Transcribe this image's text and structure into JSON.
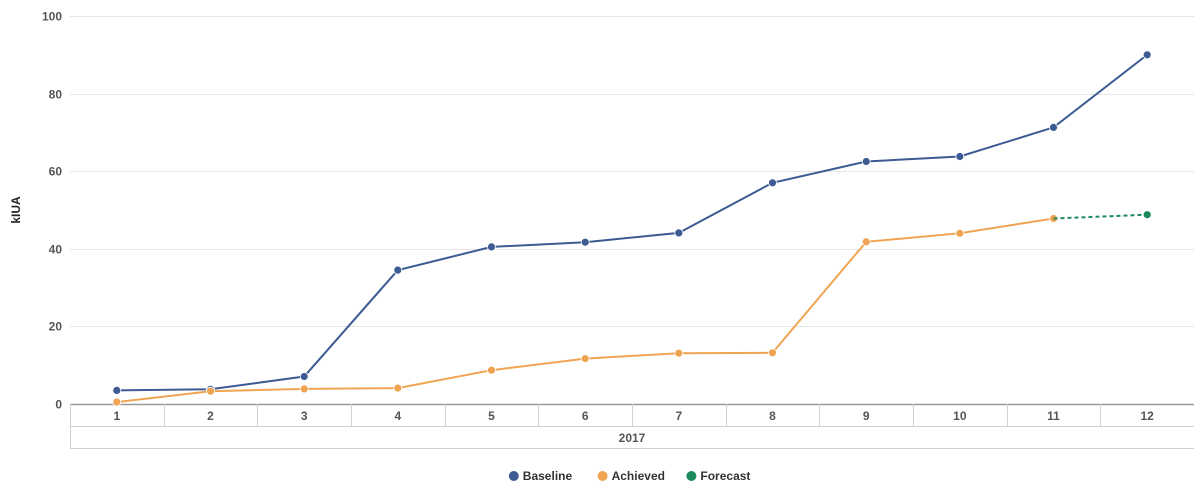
{
  "chart_data": {
    "type": "line",
    "ylabel": "kIUA",
    "ylim": [
      0,
      100
    ],
    "yticks": [
      0,
      20,
      40,
      60,
      80,
      100
    ],
    "categories": [
      "1",
      "2",
      "3",
      "4",
      "5",
      "6",
      "7",
      "8",
      "9",
      "10",
      "11",
      "12"
    ],
    "group_label": "2017",
    "grid": true,
    "legend_position": "bottom-center",
    "series": [
      {
        "name": "Baseline",
        "color": "#3b5b92",
        "values": [
          3.5,
          3.8,
          7.1,
          34.5,
          40.5,
          41.7,
          44.1,
          57.0,
          62.5,
          63.8,
          71.3,
          90.0
        ]
      },
      {
        "name": "Achieved",
        "color": "#f0a451",
        "values": [
          0.5,
          3.3,
          3.9,
          4.1,
          8.7,
          11.7,
          13.1,
          13.2,
          41.8,
          44.0,
          47.8,
          null
        ]
      },
      {
        "name": "Forecast",
        "color": "#1b8a5a",
        "values": [
          null,
          null,
          null,
          null,
          null,
          null,
          null,
          null,
          null,
          null,
          47.8,
          48.8
        ]
      }
    ]
  }
}
